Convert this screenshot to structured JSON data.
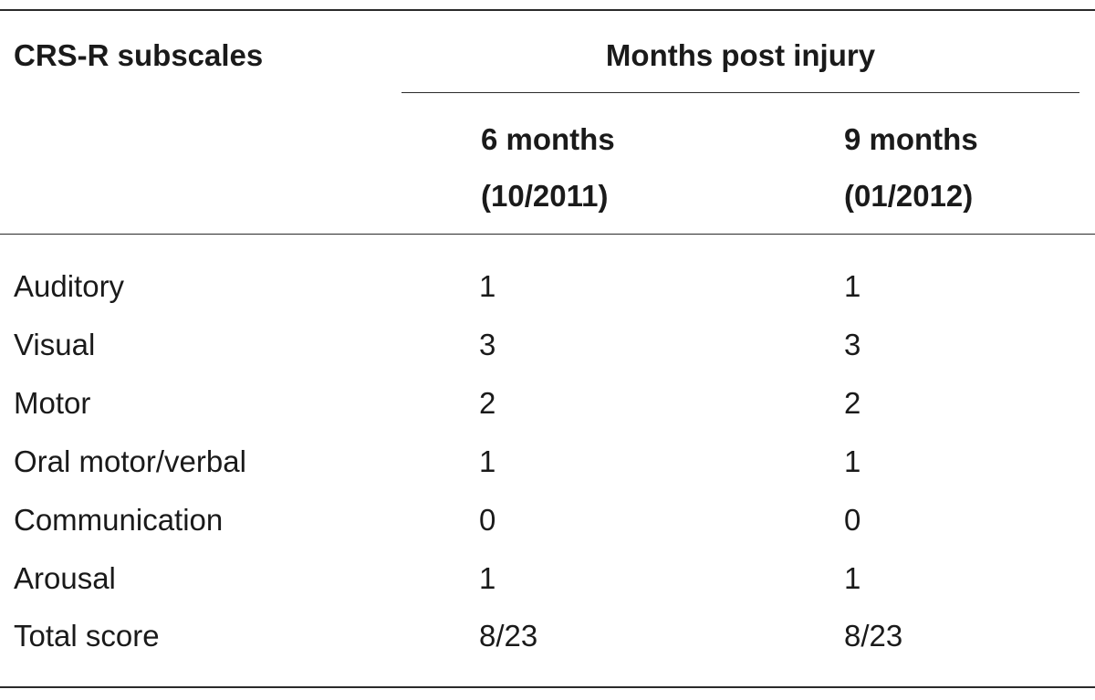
{
  "table": {
    "stub_header": "CRS-R subscales",
    "group_header": "Months post injury",
    "columns": [
      {
        "line1": "6 months",
        "line2": "(10/2011)"
      },
      {
        "line1": "9 months",
        "line2": "(01/2012)"
      }
    ],
    "rows": [
      {
        "label": "Auditory",
        "v1": "1",
        "v2": "1"
      },
      {
        "label": "Visual",
        "v1": "3",
        "v2": "3"
      },
      {
        "label": "Motor",
        "v1": "2",
        "v2": "2"
      },
      {
        "label": "Oral motor/verbal",
        "v1": "1",
        "v2": "1"
      },
      {
        "label": "Communication",
        "v1": "0",
        "v2": "0"
      },
      {
        "label": "Arousal",
        "v1": "1",
        "v2": "1"
      },
      {
        "label": "Total score",
        "v1": "8/23",
        "v2": "8/23"
      }
    ]
  }
}
